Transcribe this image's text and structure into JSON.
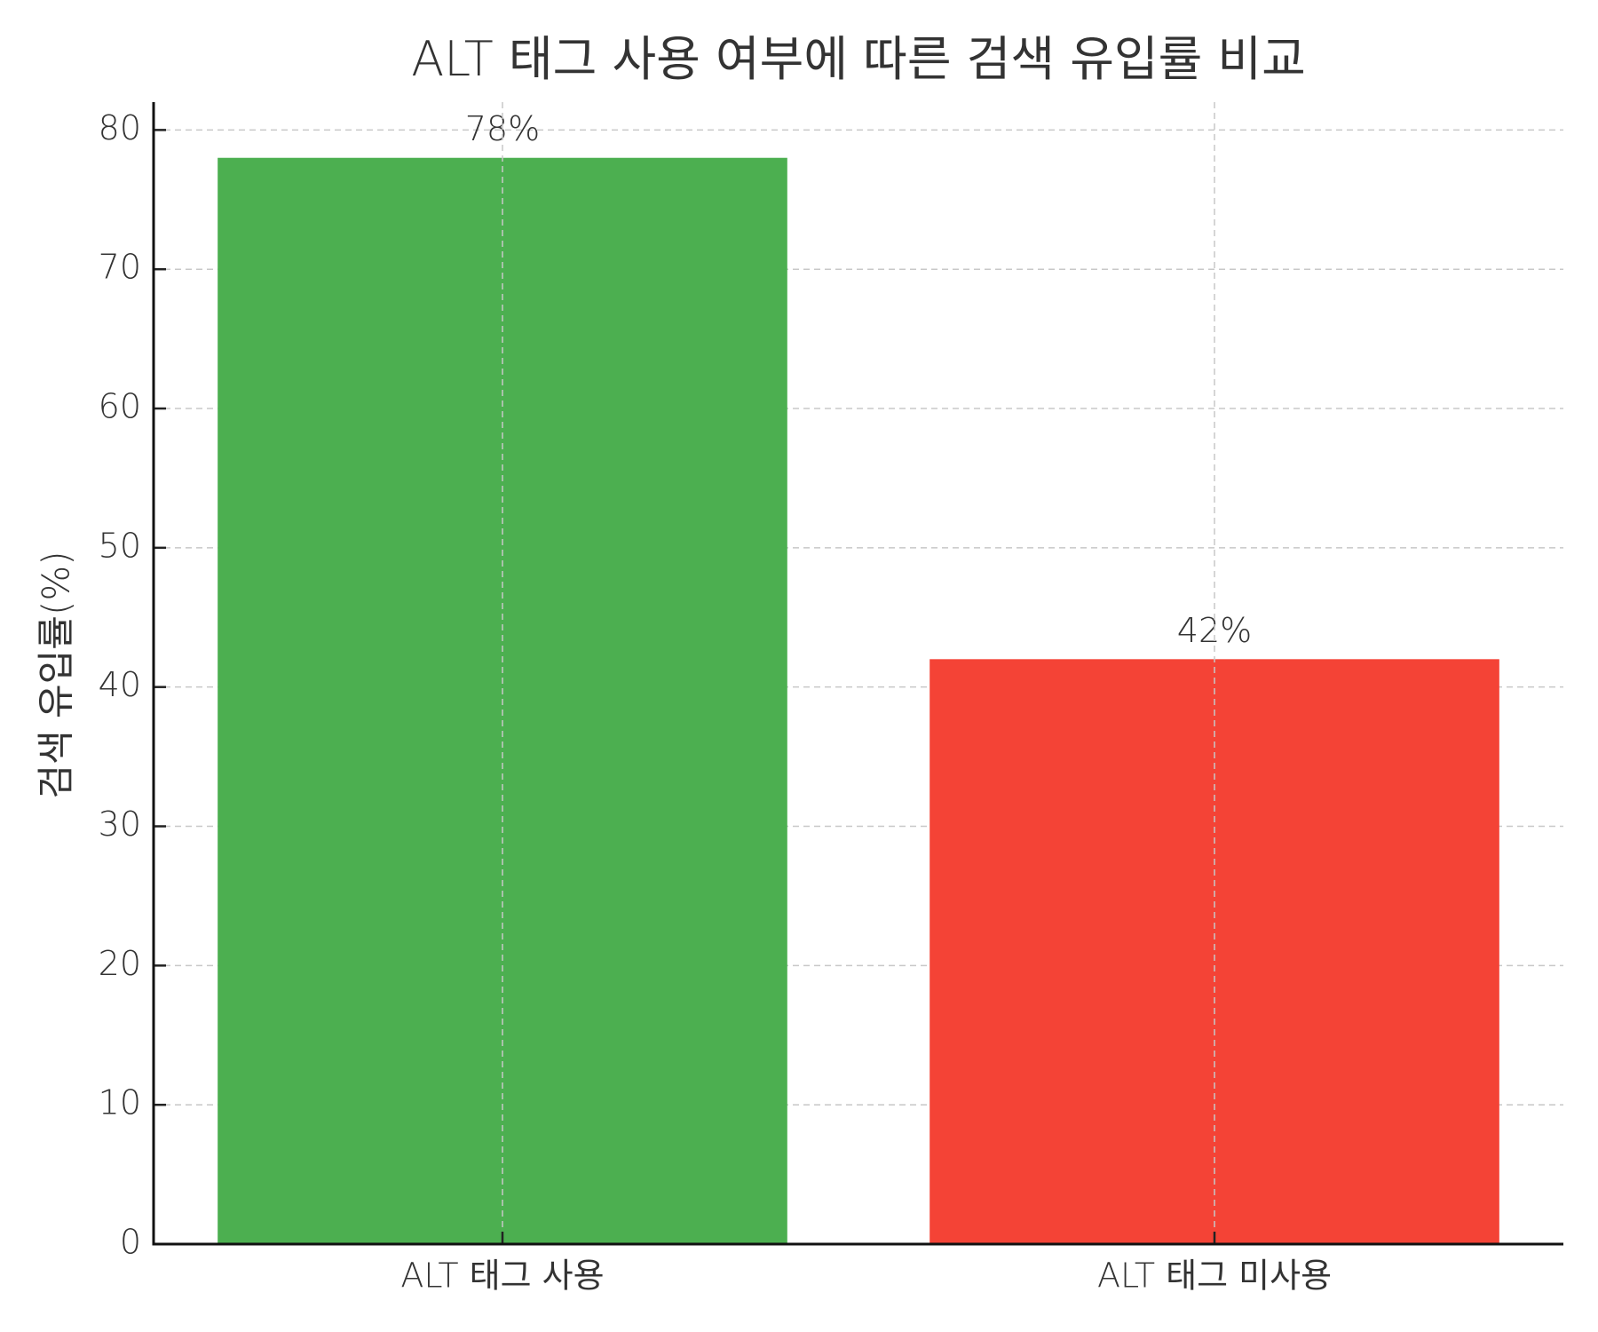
{
  "chart_data": {
    "type": "bar",
    "title": "ALT 태그 사용 여부에 따른 검색 유입률 비교",
    "y_label": "검색 유입률(%)",
    "categories": [
      "ALT 태그 사용",
      "ALT 태그 미사용"
    ],
    "values": [
      78,
      42
    ],
    "value_labels": [
      "78%",
      "42%"
    ],
    "colors": [
      "#4caf50",
      "#f44336"
    ],
    "ylim": [
      0,
      82
    ],
    "yticks": [
      0,
      10,
      20,
      30,
      40,
      50,
      60,
      70,
      80
    ],
    "grid": true
  }
}
